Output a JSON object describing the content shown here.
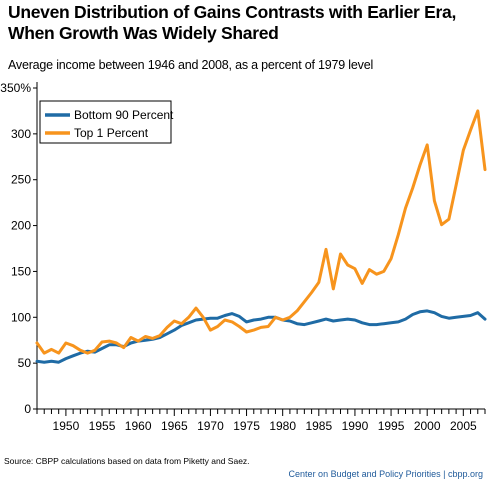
{
  "title_line1": "Uneven Distribution of Gains Contrasts with Earlier Era,",
  "title_line2": "When Growth Was Widely Shared",
  "subtitle": "Average income between 1946 and 2008, as a percent of 1979 level",
  "source": "Source: CBPP calculations based on data from Piketty and Saez.",
  "credit": "Center on Budget and Policy Priorities | cbpp.org",
  "colors": {
    "bottom90": "#1f6ba5",
    "top1": "#f7941d",
    "axis": "#000000"
  },
  "chart_data": {
    "type": "line",
    "title": "Uneven Distribution of Gains Contrasts with Earlier Era, When Growth Was Widely Shared",
    "xlabel": "",
    "ylabel": "",
    "xlim": [
      1946,
      2008
    ],
    "ylim": [
      0,
      350
    ],
    "yticks": [
      0,
      50,
      100,
      150,
      200,
      250,
      300,
      350
    ],
    "ytick_labels": [
      "0",
      "50",
      "100",
      "150",
      "200",
      "250",
      "300",
      "350%"
    ],
    "xtick_labels": [
      "1950",
      "1955",
      "1960",
      "1965",
      "1970",
      "1975",
      "1980",
      "1985",
      "1990",
      "1995",
      "2000",
      "2005"
    ],
    "legend_position": "top-left",
    "x": [
      1946,
      1947,
      1948,
      1949,
      1950,
      1951,
      1952,
      1953,
      1954,
      1955,
      1956,
      1957,
      1958,
      1959,
      1960,
      1961,
      1962,
      1963,
      1964,
      1965,
      1966,
      1967,
      1968,
      1969,
      1970,
      1971,
      1972,
      1973,
      1974,
      1975,
      1976,
      1977,
      1978,
      1979,
      1980,
      1981,
      1982,
      1983,
      1984,
      1985,
      1986,
      1987,
      1988,
      1989,
      1990,
      1991,
      1992,
      1993,
      1994,
      1995,
      1996,
      1997,
      1998,
      1999,
      2000,
      2001,
      2002,
      2003,
      2004,
      2005,
      2006,
      2007,
      2008
    ],
    "series": [
      {
        "name": "Bottom 90 Percent",
        "color": "#1f6ba5",
        "values": [
          52,
          51,
          52,
          51,
          55,
          58,
          61,
          63,
          62,
          66,
          70,
          70,
          68,
          72,
          74,
          75,
          76,
          78,
          82,
          86,
          91,
          94,
          97,
          98,
          99,
          99,
          102,
          104,
          101,
          95,
          97,
          98,
          100,
          100,
          97,
          96,
          93,
          92,
          94,
          96,
          98,
          96,
          97,
          98,
          97,
          94,
          92,
          92,
          93,
          94,
          95,
          98,
          103,
          106,
          107,
          105,
          101,
          99,
          100,
          101,
          102,
          105,
          98
        ]
      },
      {
        "name": "Top 1 Percent",
        "color": "#f7941d",
        "values": [
          72,
          61,
          65,
          61,
          72,
          69,
          64,
          61,
          64,
          73,
          74,
          72,
          67,
          78,
          74,
          79,
          77,
          80,
          89,
          96,
          93,
          100,
          110,
          100,
          86,
          90,
          97,
          95,
          90,
          84,
          86,
          89,
          90,
          100,
          97,
          100,
          107,
          117,
          127,
          138,
          174,
          131,
          169,
          157,
          153,
          137,
          152,
          147,
          150,
          164,
          190,
          219,
          241,
          266,
          288,
          227,
          201,
          207,
          244,
          282,
          304,
          325,
          261
        ]
      }
    ]
  }
}
